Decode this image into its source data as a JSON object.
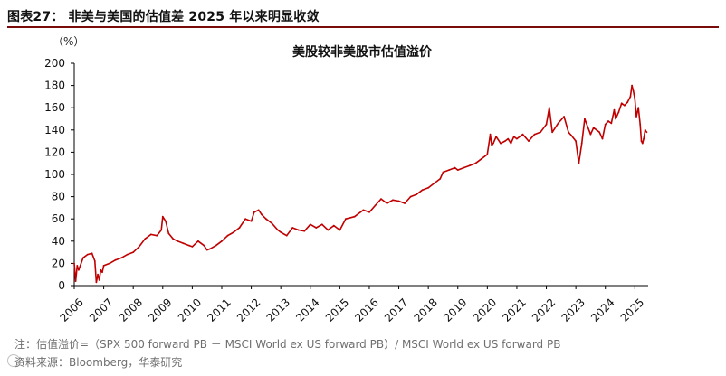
{
  "figure": {
    "title": "图表27： 非美与美国的估值差 2025 年以来明显收敛",
    "note": "注：估值溢价=（SPX 500 forward PB － MSCI World ex US forward PB）/ MSCI World ex US forward PB",
    "source": "资料来源：Bloomberg，华泰研究"
  },
  "colors": {
    "series": "#c00000",
    "title_rule": "#7a0b0b",
    "axis": "#000000"
  },
  "chart_data": {
    "type": "line",
    "title": "美股较非美股市估值溢价",
    "ylabel": "（%）",
    "xlabel": "",
    "ylim": [
      0,
      200
    ],
    "yticks": [
      0,
      20,
      40,
      60,
      80,
      100,
      120,
      140,
      160,
      180,
      200
    ],
    "xlim": [
      2006.0,
      2025.45
    ],
    "xticks": [
      "2006",
      "2007",
      "2008",
      "2009",
      "2010",
      "2011",
      "2012",
      "2013",
      "2014",
      "2015",
      "2016",
      "2017",
      "2018",
      "2019",
      "2020",
      "2021",
      "2022",
      "2023",
      "2024",
      "2025"
    ],
    "grid": false,
    "series": [
      {
        "name": "估值溢价",
        "x": [
          2006.0,
          2006.05,
          2006.1,
          2006.15,
          2006.3,
          2006.45,
          2006.6,
          2006.7,
          2006.75,
          2006.8,
          2006.85,
          2006.9,
          2006.95,
          2007.0,
          2007.2,
          2007.4,
          2007.6,
          2007.8,
          2008.0,
          2008.2,
          2008.4,
          2008.6,
          2008.8,
          2008.95,
          2009.0,
          2009.1,
          2009.2,
          2009.35,
          2009.5,
          2009.7,
          2009.9,
          2010.0,
          2010.2,
          2010.4,
          2010.5,
          2010.6,
          2010.8,
          2011.0,
          2011.2,
          2011.4,
          2011.6,
          2011.8,
          2012.0,
          2012.1,
          2012.25,
          2012.35,
          2012.5,
          2012.7,
          2012.9,
          2013.0,
          2013.2,
          2013.4,
          2013.6,
          2013.8,
          2014.0,
          2014.2,
          2014.4,
          2014.6,
          2014.8,
          2015.0,
          2015.2,
          2015.5,
          2015.8,
          2016.0,
          2016.2,
          2016.4,
          2016.6,
          2016.8,
          2017.0,
          2017.2,
          2017.4,
          2017.6,
          2017.8,
          2018.0,
          2018.2,
          2018.4,
          2018.5,
          2018.7,
          2018.9,
          2019.0,
          2019.2,
          2019.4,
          2019.6,
          2019.8,
          2020.0,
          2020.1,
          2020.15,
          2020.2,
          2020.3,
          2020.45,
          2020.6,
          2020.7,
          2020.8,
          2020.9,
          2021.0,
          2021.2,
          2021.4,
          2021.6,
          2021.8,
          2022.0,
          2022.1,
          2022.2,
          2022.4,
          2022.6,
          2022.75,
          2022.85,
          2023.0,
          2023.1,
          2023.2,
          2023.3,
          2023.5,
          2023.6,
          2023.7,
          2023.8,
          2023.9,
          2024.0,
          2024.1,
          2024.2,
          2024.3,
          2024.35,
          2024.45,
          2024.55,
          2024.65,
          2024.75,
          2024.85,
          2024.9,
          2024.95,
          2025.0,
          2025.05,
          2025.12,
          2025.18,
          2025.22,
          2025.26,
          2025.3,
          2025.35,
          2025.4
        ],
        "values": [
          20,
          4,
          18,
          14,
          25,
          28,
          29,
          22,
          3,
          10,
          5,
          14,
          12,
          18,
          20,
          23,
          25,
          28,
          30,
          35,
          42,
          46,
          45,
          50,
          62,
          58,
          47,
          42,
          40,
          38,
          36,
          35,
          40,
          36,
          32,
          33,
          36,
          40,
          45,
          48,
          52,
          60,
          58,
          66,
          68,
          64,
          60,
          56,
          50,
          48,
          45,
          52,
          50,
          49,
          55,
          52,
          55,
          50,
          54,
          50,
          60,
          62,
          68,
          66,
          72,
          78,
          74,
          77,
          76,
          74,
          80,
          82,
          86,
          88,
          92,
          96,
          102,
          104,
          106,
          104,
          106,
          108,
          110,
          114,
          118,
          136,
          126,
          128,
          134,
          128,
          130,
          132,
          128,
          134,
          132,
          136,
          130,
          136,
          138,
          145,
          160,
          138,
          146,
          152,
          138,
          135,
          130,
          110,
          128,
          150,
          136,
          142,
          140,
          138,
          132,
          145,
          148,
          146,
          158,
          150,
          156,
          164,
          162,
          165,
          170,
          180,
          175,
          168,
          152,
          160,
          145,
          130,
          128,
          132,
          140,
          138
        ]
      }
    ]
  }
}
